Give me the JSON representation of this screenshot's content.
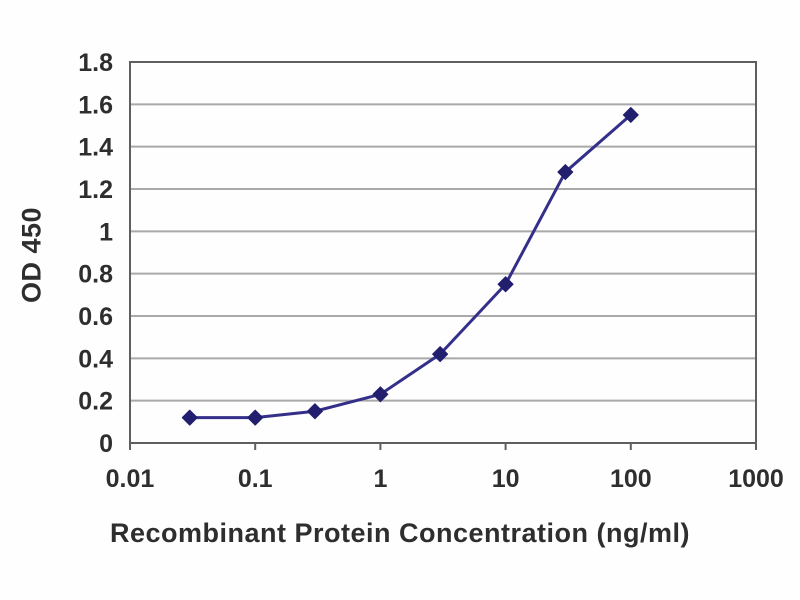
{
  "chart_data": {
    "type": "line",
    "title": "",
    "xlabel": "Recombinant Protein Concentration (ng/ml)",
    "ylabel": "OD 450",
    "x_scale": "log",
    "xlim": [
      0.01,
      1000
    ],
    "ylim": [
      0,
      1.8
    ],
    "x_ticks": [
      0.01,
      0.1,
      1,
      10,
      100,
      1000
    ],
    "x_tick_labels": [
      "0.01",
      "0.1",
      "1",
      "10",
      "100",
      "1000"
    ],
    "y_ticks": [
      0,
      0.2,
      0.4,
      0.6,
      0.8,
      1,
      1.2,
      1.4,
      1.6,
      1.8
    ],
    "y_tick_labels": [
      "0",
      "0.2",
      "0.4",
      "0.6",
      "0.8",
      "1",
      "1.2",
      "1.4",
      "1.6",
      "1.8"
    ],
    "grid": "horizontal",
    "legend": "none",
    "series": [
      {
        "name": "OD 450",
        "x": [
          0.03,
          0.1,
          0.3,
          1,
          3,
          10,
          30,
          100
        ],
        "y": [
          0.12,
          0.12,
          0.15,
          0.23,
          0.42,
          0.75,
          1.28,
          1.55
        ],
        "marker": "diamond"
      }
    ]
  },
  "colors": {
    "background": "#fefefe",
    "frame": "#5f5f5f",
    "grid": "#a9a9a9",
    "tick_text": "#2e2e2e",
    "series_line": "#34308a",
    "series_marker": "#221f6e"
  }
}
